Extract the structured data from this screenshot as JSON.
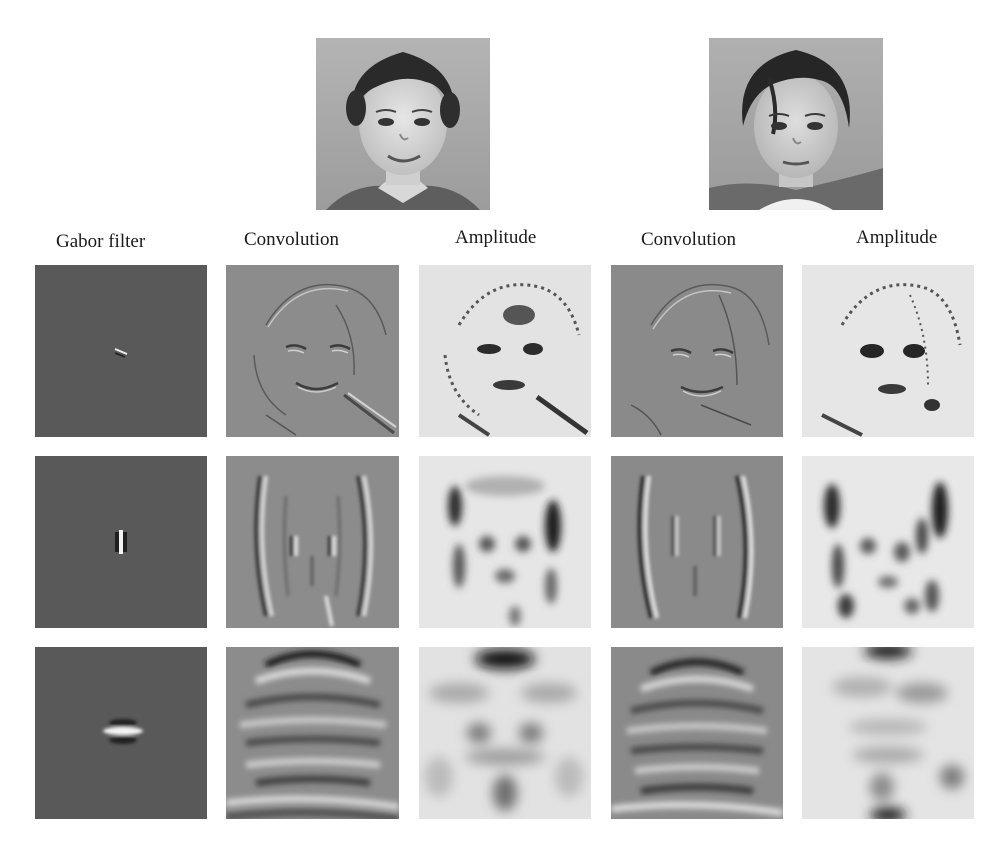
{
  "headers": {
    "gabor": "Gabor filter",
    "conv1": "Convolution",
    "amp1": "Amplitude",
    "conv2": "Convolution",
    "amp2": "Amplitude"
  },
  "colors": {
    "filter_background": "#595959",
    "convolution_background": "#8c8c8c",
    "amplitude_background": "#e3e3e3",
    "photo_background": "#a9a9a9"
  },
  "rows": [
    {
      "scale": "small"
    },
    {
      "scale": "medium"
    },
    {
      "scale": "large"
    }
  ]
}
